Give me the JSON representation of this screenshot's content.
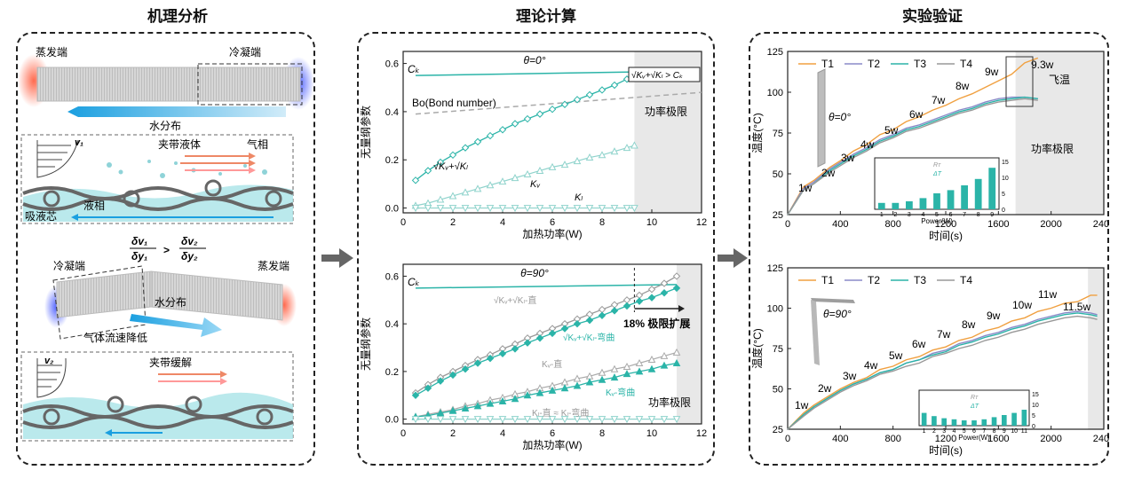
{
  "titles": {
    "mechanism": "机理分析",
    "theory": "理论计算",
    "experiment": "实验验证"
  },
  "mechanism": {
    "evaporator": "蒸发端",
    "condenser": "冷凝端",
    "water_distribution": "水分布",
    "v1": "v₁",
    "entrained_liquid": "夹带液体",
    "gas_phase": "气相",
    "wick": "吸液芯",
    "liquid_phase": "液相",
    "ratio_lhs_num": "δv₁",
    "ratio_lhs_den": "δy₁",
    "ratio_op": ">",
    "ratio_rhs_num": "δv₂",
    "ratio_rhs_den": "δy₂",
    "condenser2": "冷凝端",
    "evaporator2": "蒸发端",
    "water_distribution2": "水分布",
    "gas_slowdown": "气体流速降低",
    "v2": "v₂",
    "entrainment_relief": "夹带缓解"
  },
  "colors": {
    "teal": "#2bb4a8",
    "light_teal": "#8fd3cc",
    "gray": "#aaaaaa",
    "orange": "#f0a040",
    "purple": "#8a8ac8",
    "dark_gray": "#666666",
    "shade": "#e8e8e8"
  },
  "chart_data": [
    {
      "type": "line",
      "id": "theory-top",
      "title": "θ=0°",
      "xlabel": "加热功率(W)",
      "ylabel": "无量纲参数",
      "xlim": [
        0,
        12
      ],
      "ylim": [
        -0.02,
        0.65
      ],
      "xticks": [
        "0",
        "2",
        "4",
        "6",
        "8",
        "10",
        "12"
      ],
      "yticks": [
        "0.0",
        "0.2",
        "0.4",
        "0.6"
      ],
      "shade_from": 9.3,
      "shade_label": "功率极限",
      "series": [
        {
          "name": "Ck",
          "label": "Cₖ",
          "x": [
            0.5,
            9.3
          ],
          "y": [
            0.55,
            0.565
          ],
          "style": "teal-solid"
        },
        {
          "name": "Bo",
          "label": "Bo(Bond number)",
          "x": [
            0.5,
            12
          ],
          "y": [
            0.39,
            0.48
          ],
          "style": "gray-dash"
        },
        {
          "name": "sqrtKv+sqrtKl",
          "label": "√Kᵥ+√Kₗ",
          "x": [
            0.5,
            1,
            1.5,
            2,
            2.5,
            3,
            3.5,
            4,
            4.5,
            5,
            5.5,
            6,
            6.5,
            7,
            7.5,
            8,
            8.5,
            9,
            9.3
          ],
          "y": [
            0.115,
            0.155,
            0.19,
            0.22,
            0.25,
            0.275,
            0.3,
            0.325,
            0.35,
            0.37,
            0.39,
            0.41,
            0.43,
            0.45,
            0.47,
            0.49,
            0.51,
            0.535,
            0.56
          ],
          "style": "teal-diamond"
        },
        {
          "name": "Kv",
          "label": "Kᵥ",
          "x": [
            0.5,
            1,
            1.5,
            2,
            2.5,
            3,
            3.5,
            4,
            4.5,
            5,
            5.5,
            6,
            6.5,
            7,
            7.5,
            8,
            8.5,
            9,
            9.3
          ],
          "y": [
            0.01,
            0.02,
            0.035,
            0.05,
            0.065,
            0.08,
            0.095,
            0.11,
            0.125,
            0.14,
            0.155,
            0.17,
            0.18,
            0.195,
            0.21,
            0.22,
            0.235,
            0.25,
            0.26
          ],
          "style": "light-triangle"
        },
        {
          "name": "Kl",
          "label": "Kₗ",
          "x": [
            0.5,
            1,
            1.5,
            2,
            2.5,
            3,
            3.5,
            4,
            4.5,
            5,
            5.5,
            6,
            6.5,
            7,
            7.5,
            8,
            8.5,
            9,
            9.3
          ],
          "y": [
            0,
            0,
            0,
            0,
            0,
            0,
            0,
            0,
            0,
            0,
            0,
            0,
            0,
            0,
            0,
            0,
            0,
            0,
            0
          ],
          "style": "light-triangle-down"
        }
      ],
      "annotations": {
        "criterion": "√Kᵥ+√Kₗ > Cₖ"
      }
    },
    {
      "type": "line",
      "id": "theory-bottom",
      "title": "θ=90°",
      "xlabel": "加热功率(W)",
      "ylabel": "无量纲参数",
      "xlim": [
        0,
        12
      ],
      "ylim": [
        -0.02,
        0.65
      ],
      "xticks": [
        "0",
        "2",
        "4",
        "6",
        "8",
        "10",
        "12"
      ],
      "yticks": [
        "0.0",
        "0.2",
        "0.4",
        "0.6"
      ],
      "shade_from": 11,
      "shade_label": "功率极限",
      "series": [
        {
          "name": "Ck",
          "label": "Cₖ",
          "x": [
            0.5,
            11
          ],
          "y": [
            0.55,
            0.565
          ],
          "style": "teal-solid"
        },
        {
          "name": "sqrt-straight",
          "label": "√Kᵥ+√Kₗ-直",
          "x": [
            0.5,
            1,
            1.5,
            2,
            2.5,
            3,
            3.5,
            4,
            4.5,
            5,
            5.5,
            6,
            6.5,
            7,
            7.5,
            8,
            8.5,
            9,
            9.5,
            10,
            10.5,
            11
          ],
          "y": [
            0.11,
            0.145,
            0.175,
            0.2,
            0.225,
            0.25,
            0.27,
            0.295,
            0.315,
            0.34,
            0.36,
            0.38,
            0.4,
            0.42,
            0.44,
            0.46,
            0.48,
            0.5,
            0.52,
            0.545,
            0.57,
            0.6
          ],
          "style": "gray-diamond"
        },
        {
          "name": "sqrt-bent",
          "label": "√Kᵥ+√Kₗ-弯曲",
          "x": [
            0.5,
            1,
            1.5,
            2,
            2.5,
            3,
            3.5,
            4,
            4.5,
            5,
            5.5,
            6,
            6.5,
            7,
            7.5,
            8,
            8.5,
            9,
            9.5,
            10,
            10.5,
            11
          ],
          "y": [
            0.1,
            0.13,
            0.16,
            0.185,
            0.21,
            0.235,
            0.255,
            0.275,
            0.295,
            0.32,
            0.34,
            0.36,
            0.38,
            0.4,
            0.415,
            0.435,
            0.455,
            0.475,
            0.495,
            0.51,
            0.53,
            0.55
          ],
          "style": "teal-diamond"
        },
        {
          "name": "Kv-straight",
          "label": "Kᵥ-直",
          "x": [
            0.5,
            1,
            1.5,
            2,
            2.5,
            3,
            3.5,
            4,
            4.5,
            5,
            5.5,
            6,
            6.5,
            7,
            7.5,
            8,
            8.5,
            9,
            9.5,
            10,
            10.5,
            11
          ],
          "y": [
            0.01,
            0.02,
            0.03,
            0.04,
            0.055,
            0.065,
            0.08,
            0.09,
            0.105,
            0.115,
            0.13,
            0.14,
            0.155,
            0.17,
            0.18,
            0.195,
            0.21,
            0.22,
            0.235,
            0.25,
            0.265,
            0.28
          ],
          "style": "gray-triangle"
        },
        {
          "name": "Kv-bent",
          "label": "Kᵥ-弯曲",
          "x": [
            0.5,
            1,
            1.5,
            2,
            2.5,
            3,
            3.5,
            4,
            4.5,
            5,
            5.5,
            6,
            6.5,
            7,
            7.5,
            8,
            8.5,
            9,
            9.5,
            10,
            10.5,
            11
          ],
          "y": [
            0.01,
            0.015,
            0.025,
            0.035,
            0.045,
            0.055,
            0.065,
            0.075,
            0.085,
            0.1,
            0.11,
            0.12,
            0.13,
            0.14,
            0.155,
            0.165,
            0.175,
            0.19,
            0.2,
            0.21,
            0.225,
            0.235
          ],
          "style": "teal-triangle"
        },
        {
          "name": "Kl",
          "label": "Kₗ-直 ≈ Kₗ-弯曲",
          "x": [
            0.5,
            1,
            1.5,
            2,
            2.5,
            3,
            3.5,
            4,
            4.5,
            5,
            5.5,
            6,
            6.5,
            7,
            7.5,
            8,
            8.5,
            9,
            9.5,
            10,
            10.5,
            11
          ],
          "y": [
            0,
            0,
            0,
            0,
            0,
            0,
            0,
            0,
            0,
            0,
            0,
            0,
            0,
            0,
            0,
            0,
            0,
            0,
            0,
            0,
            0,
            0
          ],
          "style": "light-triangle-down"
        }
      ],
      "annotations": {
        "extension": "18% 极限扩展",
        "dash_at": 9.3
      }
    },
    {
      "type": "line",
      "id": "experiment-top",
      "title": "θ=0°",
      "xlabel": "时间(s)",
      "ylabel": "温度(°C)",
      "xlim": [
        0,
        2400
      ],
      "ylim": [
        25,
        125
      ],
      "xticks": [
        "0",
        "400",
        "800",
        "1200",
        "1600",
        "2000",
        "2400"
      ],
      "yticks": [
        "25",
        "50",
        "75",
        "100",
        "125"
      ],
      "shade_from": 1730,
      "shade_label": "功率极限",
      "legend": [
        "T1",
        "T2",
        "T3",
        "T4"
      ],
      "power_labels": [
        "1w",
        "2w",
        "3w",
        "4w",
        "5w",
        "6w",
        "7w",
        "8w",
        "9w",
        "9.3w"
      ],
      "final_label": "飞温",
      "series": [
        {
          "name": "T1",
          "x": [
            0,
            120,
            200,
            320,
            400,
            500,
            600,
            700,
            800,
            900,
            1000,
            1100,
            1200,
            1300,
            1400,
            1500,
            1600,
            1700,
            1800,
            1900
          ],
          "y": [
            25,
            42,
            46,
            54,
            58,
            64,
            68,
            74,
            77,
            82,
            85,
            89,
            92,
            96,
            99,
            103,
            107,
            111,
            118,
            121
          ]
        },
        {
          "name": "T2",
          "x": [
            0,
            120,
            200,
            320,
            400,
            500,
            600,
            700,
            800,
            900,
            1000,
            1100,
            1200,
            1300,
            1400,
            1500,
            1600,
            1700,
            1800,
            1900
          ],
          "y": [
            25,
            41,
            45,
            53,
            57,
            62,
            66,
            71,
            74,
            78,
            80,
            83,
            86,
            89,
            91,
            94,
            96,
            97,
            97,
            96
          ]
        },
        {
          "name": "T3",
          "x": [
            0,
            120,
            200,
            320,
            400,
            500,
            600,
            700,
            800,
            900,
            1000,
            1100,
            1200,
            1300,
            1400,
            1500,
            1600,
            1700,
            1800,
            1900
          ],
          "y": [
            25,
            40,
            44,
            52,
            56,
            61,
            65,
            70,
            73,
            77,
            79,
            82,
            85,
            88,
            90,
            93,
            95,
            96,
            97,
            96
          ]
        },
        {
          "name": "T4",
          "x": [
            0,
            120,
            200,
            320,
            400,
            500,
            600,
            700,
            800,
            900,
            1000,
            1100,
            1200,
            1300,
            1400,
            1500,
            1600,
            1700,
            1800,
            1900
          ],
          "y": [
            25,
            40,
            44,
            51,
            55,
            60,
            64,
            69,
            72,
            76,
            78,
            81,
            84,
            87,
            89,
            92,
            94,
            95,
            96,
            95
          ]
        }
      ],
      "inset": {
        "xlabel": "Power(W)",
        "ylabel_top": "Rᴛ",
        "ylabel_bottom": "ΔT",
        "categories": [
          "1",
          "2",
          "3",
          "4",
          "5",
          "6",
          "7",
          "8",
          "9"
        ],
        "values": [
          2,
          2,
          2.5,
          3.5,
          5,
          6,
          7.5,
          9.5,
          13
        ],
        "ylim": [
          0,
          15
        ],
        "yticks": [
          "0",
          "5",
          "10",
          "15"
        ]
      }
    },
    {
      "type": "line",
      "id": "experiment-bottom",
      "title": "θ=90°",
      "xlabel": "时间(s)",
      "ylabel": "温度(°C)",
      "xlim": [
        0,
        2400
      ],
      "ylim": [
        25,
        125
      ],
      "xticks": [
        "0",
        "400",
        "800",
        "1200",
        "1600",
        "2000",
        "2400"
      ],
      "yticks": [
        "25",
        "50",
        "75",
        "100",
        "125"
      ],
      "shade_from": 2280,
      "legend": [
        "T1",
        "T2",
        "T3",
        "T4"
      ],
      "power_labels": [
        "1w",
        "2w",
        "3w",
        "4w",
        "5w",
        "6w",
        "7w",
        "8w",
        "9w",
        "10w",
        "11w",
        "11.5w"
      ],
      "series": [
        {
          "name": "T1",
          "x": [
            0,
            120,
            200,
            320,
            400,
            500,
            600,
            700,
            800,
            900,
            1000,
            1100,
            1200,
            1300,
            1400,
            1500,
            1600,
            1700,
            1800,
            1900,
            2000,
            2100,
            2200,
            2300,
            2350
          ],
          "y": [
            25,
            35,
            40,
            46,
            50,
            54,
            57,
            62,
            64,
            68,
            70,
            74,
            76,
            80,
            82,
            86,
            88,
            92,
            94,
            98,
            100,
            103,
            104,
            108,
            108
          ]
        },
        {
          "name": "T2",
          "x": [
            0,
            120,
            200,
            320,
            400,
            500,
            600,
            700,
            800,
            900,
            1000,
            1100,
            1200,
            1300,
            1400,
            1500,
            1600,
            1700,
            1800,
            1900,
            2000,
            2100,
            2200,
            2300,
            2350
          ],
          "y": [
            25,
            34,
            39,
            45,
            49,
            53,
            56,
            60,
            62,
            66,
            68,
            72,
            74,
            78,
            80,
            83,
            85,
            88,
            90,
            93,
            95,
            97,
            98,
            97,
            96
          ]
        },
        {
          "name": "T3",
          "x": [
            0,
            120,
            200,
            320,
            400,
            500,
            600,
            700,
            800,
            900,
            1000,
            1100,
            1200,
            1300,
            1400,
            1500,
            1600,
            1700,
            1800,
            1900,
            2000,
            2100,
            2200,
            2300,
            2350
          ],
          "y": [
            25,
            34,
            39,
            45,
            49,
            53,
            56,
            60,
            62,
            66,
            68,
            71,
            73,
            77,
            79,
            82,
            84,
            87,
            89,
            92,
            94,
            96,
            97,
            96,
            95
          ]
        },
        {
          "name": "T4",
          "x": [
            0,
            120,
            200,
            320,
            400,
            500,
            600,
            700,
            800,
            900,
            1000,
            1100,
            1200,
            1300,
            1400,
            1500,
            1600,
            1700,
            1800,
            1900,
            2000,
            2100,
            2200,
            2300,
            2350
          ],
          "y": [
            25,
            33,
            38,
            44,
            48,
            52,
            55,
            59,
            61,
            64,
            66,
            70,
            72,
            75,
            77,
            80,
            82,
            85,
            87,
            90,
            92,
            94,
            95,
            94,
            93
          ]
        }
      ],
      "inset": {
        "xlabel": "Power(W)",
        "ylabel_top": "Rᴛ",
        "ylabel_bottom": "ΔT",
        "categories": [
          "1",
          "2",
          "3",
          "4",
          "5",
          "6",
          "7",
          "8",
          "9",
          "10",
          "11"
        ],
        "values": [
          6,
          4.5,
          3.5,
          3,
          2.5,
          2.5,
          3,
          4,
          5,
          6,
          7.5
        ],
        "ylim": [
          0,
          15
        ],
        "yticks": [
          "0",
          "5",
          "10",
          "15"
        ]
      }
    }
  ]
}
